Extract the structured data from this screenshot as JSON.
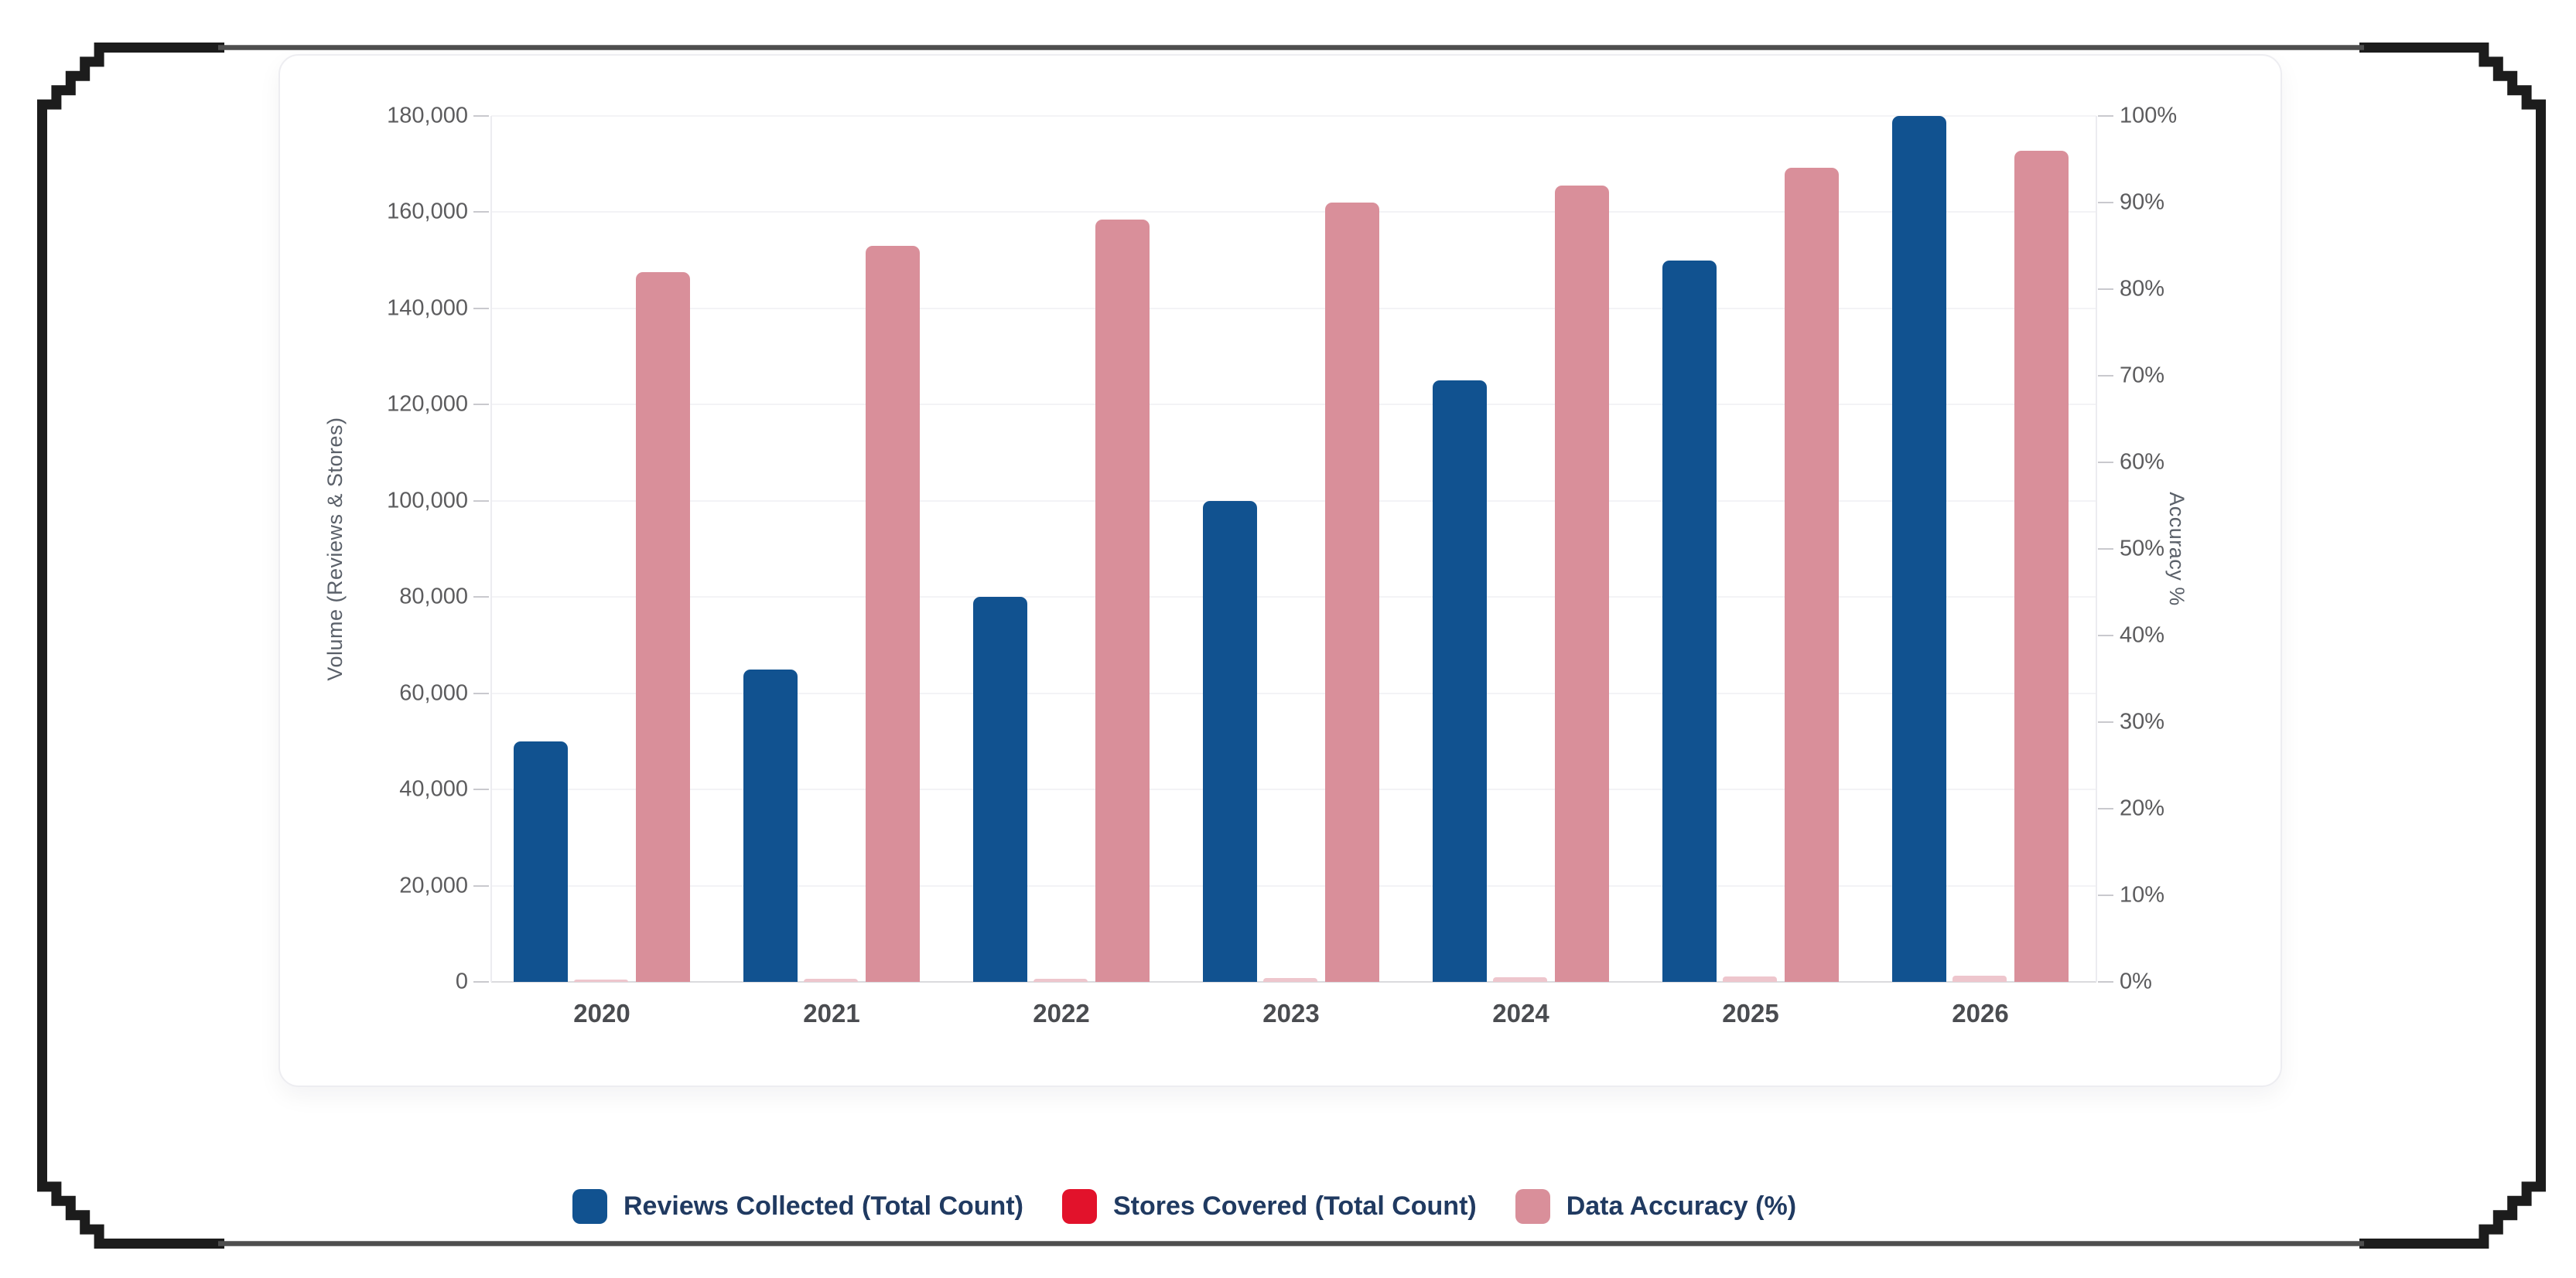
{
  "chart_data": {
    "type": "bar",
    "title": "",
    "categories": [
      "2020",
      "2021",
      "2022",
      "2023",
      "2024",
      "2025",
      "2026"
    ],
    "series": [
      {
        "name": "Reviews Collected (Total Count)",
        "axis": "left",
        "color": "#115290",
        "values": [
          50000,
          65000,
          80000,
          100000,
          125000,
          150000,
          180000
        ]
      },
      {
        "name": "Stores Covered (Total Count)",
        "axis": "left",
        "color": "#e2122b",
        "bar_color": "#eec6cd",
        "values": [
          500,
          600,
          700,
          800,
          900,
          1100,
          1300
        ]
      },
      {
        "name": "Data Accuracy (%)",
        "axis": "right",
        "color": "#d98f9a",
        "values": [
          82,
          85,
          88,
          90,
          92,
          94,
          96
        ]
      }
    ],
    "left_axis": {
      "label": "Volume (Reviews & Stores)",
      "min": 0,
      "max": 180000,
      "step": 20000,
      "tick_labels": [
        "0",
        "20,000",
        "40,000",
        "60,000",
        "80,000",
        "100,000",
        "120,000",
        "140,000",
        "160,000",
        "180,000"
      ]
    },
    "right_axis": {
      "label": "Accuracy %",
      "min": 0,
      "max": 100,
      "step": 10,
      "tick_labels": [
        "0%",
        "10%",
        "20%",
        "30%",
        "40%",
        "50%",
        "60%",
        "70%",
        "80%",
        "90%",
        "100%"
      ]
    },
    "grid": "horizontal",
    "legend_position": "bottom"
  },
  "legend": {
    "items": [
      {
        "label": "Reviews Collected (Total Count)",
        "color": "#115290"
      },
      {
        "label": "Stores Covered (Total Count)",
        "color": "#e2122b"
      },
      {
        "label": "Data Accuracy (%)",
        "color": "#d98f9a"
      }
    ]
  },
  "colors": {
    "frame_black": "#1c1c1c",
    "frame_gray": "#4e4e4e",
    "card_border": "#ededf1",
    "gridline": "#f3f3f6",
    "axis_line": "#dadade",
    "tick_text": "#5c5c5e",
    "year_text": "#4a4c50",
    "legend_text": "#203a61"
  }
}
